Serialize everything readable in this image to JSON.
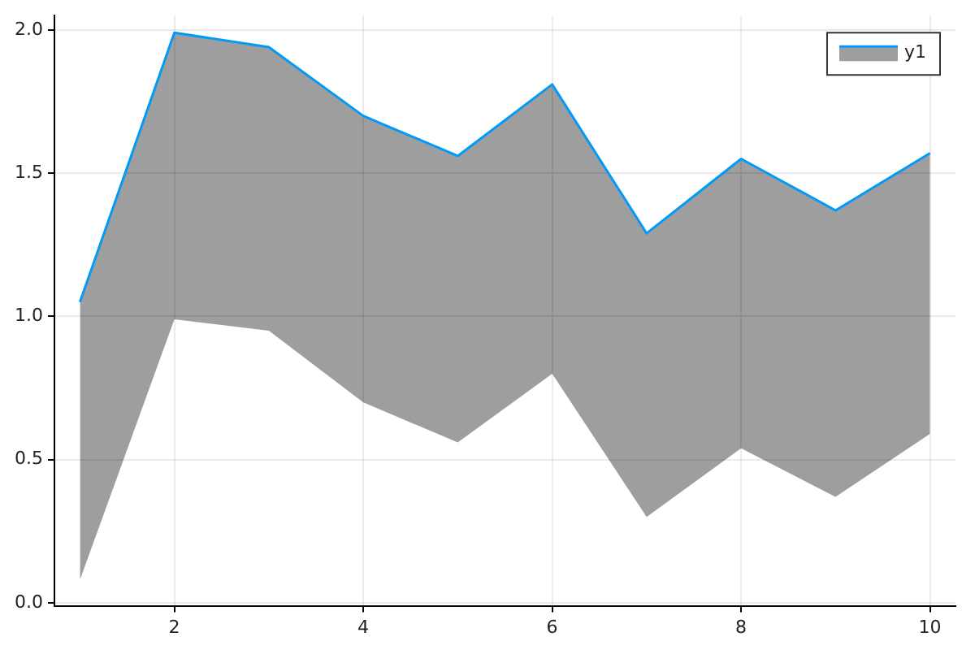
{
  "chart_data": {
    "type": "line",
    "x": [
      1,
      2,
      3,
      4,
      5,
      6,
      7,
      8,
      9,
      10
    ],
    "series": [
      {
        "name": "y1",
        "color": "#009af9",
        "values": [
          1.05,
          1.99,
          1.94,
          1.7,
          1.56,
          1.81,
          1.29,
          1.55,
          1.37,
          1.57
        ],
        "lower": [
          0.08,
          0.99,
          0.95,
          0.7,
          0.56,
          0.8,
          0.3,
          0.54,
          0.37,
          0.59
        ],
        "upper": [
          1.05,
          1.99,
          1.94,
          1.7,
          1.56,
          1.81,
          1.29,
          1.55,
          1.37,
          1.57
        ]
      }
    ],
    "xlim": [
      0.73,
      10.27
    ],
    "xticks": [
      2,
      4,
      6,
      8,
      10
    ],
    "ylim": [
      -0.01,
      2.05
    ],
    "yticks": [
      {
        "value": 0,
        "label": "0.0"
      },
      {
        "value": 0.5,
        "label": "0.5"
      },
      {
        "value": 1,
        "label": "1.0"
      },
      {
        "value": 1.5,
        "label": "1.5"
      },
      {
        "value": 2,
        "label": "2.0"
      }
    ],
    "grid": true,
    "legend": "top right",
    "line_style": "solid",
    "marker": "none"
  }
}
